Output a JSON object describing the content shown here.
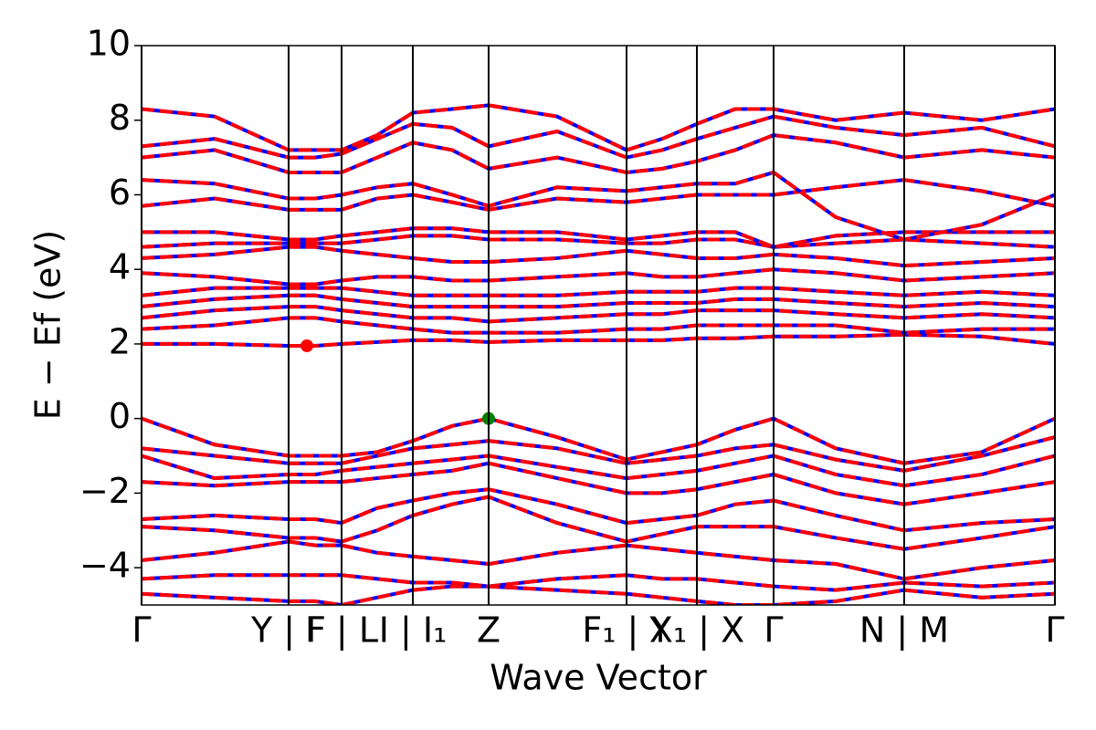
{
  "chart_data": {
    "type": "line",
    "xlabel": "Wave Vector",
    "ylabel": "E − Ef (eV)",
    "xlim": [
      0,
      10
    ],
    "ylim": [
      -5,
      10
    ],
    "xticks": [
      {
        "value": 0,
        "label": "Γ"
      },
      {
        "value": 1.61,
        "label": "Y | F"
      },
      {
        "value": 2.19,
        "label": "F | L"
      },
      {
        "value": 2.97,
        "label": "I | I₁"
      },
      {
        "value": 3.8,
        "label": "Z"
      },
      {
        "value": 5.31,
        "label": "F₁ | Y"
      },
      {
        "value": 6.08,
        "label": "X₁ | X"
      },
      {
        "value": 6.92,
        "label": "Γ"
      },
      {
        "value": 8.35,
        "label": "N | M"
      },
      {
        "value": 10,
        "label": "Γ"
      }
    ],
    "yticks": [
      {
        "value": -4,
        "label": "−4"
      },
      {
        "value": -2,
        "label": "−2"
      },
      0,
      2,
      4,
      6,
      8,
      10
    ],
    "line_color": "#0000ff",
    "dash_color": "#ff0000",
    "x": [
      0,
      0.8,
      1.61,
      1.9,
      2.19,
      2.58,
      2.97,
      3.4,
      3.8,
      4.55,
      5.31,
      5.7,
      6.08,
      6.5,
      6.92,
      7.6,
      8.35,
      9.2,
      10
    ],
    "bands": [
      [
        0,
        -0.7,
        -1,
        -1,
        -1,
        -0.9,
        -0.6,
        -0.2,
        0,
        -0.5,
        -1.1,
        -0.9,
        -0.7,
        -0.3,
        0,
        -0.8,
        -1.2,
        -0.9,
        0
      ],
      [
        -0.8,
        -1.0,
        -1.2,
        -1.2,
        -1.2,
        -1.0,
        -0.8,
        -0.7,
        -0.6,
        -0.8,
        -1.2,
        -1.1,
        -1.0,
        -0.8,
        -0.7,
        -1.1,
        -1.4,
        -1.0,
        -0.5
      ],
      [
        -1.0,
        -1.6,
        -1.5,
        -1.5,
        -1.4,
        -1.3,
        -1.2,
        -1.1,
        -1.0,
        -1.3,
        -1.6,
        -1.5,
        -1.4,
        -1.2,
        -1.0,
        -1.5,
        -1.8,
        -1.5,
        -1.0
      ],
      [
        -1.7,
        -1.8,
        -1.7,
        -1.7,
        -1.7,
        -1.6,
        -1.5,
        -1.4,
        -1.2,
        -1.6,
        -2.0,
        -2.0,
        -1.9,
        -1.7,
        -1.5,
        -2.0,
        -2.3,
        -2.0,
        -1.7
      ],
      [
        -2.7,
        -2.6,
        -2.7,
        -2.7,
        -2.8,
        -2.4,
        -2.2,
        -2.0,
        -1.9,
        -2.3,
        -2.8,
        -2.7,
        -2.6,
        -2.3,
        -2.2,
        -2.6,
        -3.0,
        -2.8,
        -2.7
      ],
      [
        -2.9,
        -3.0,
        -3.2,
        -3.2,
        -3.3,
        -3.0,
        -2.6,
        -2.3,
        -2.1,
        -2.8,
        -3.3,
        -3.1,
        -2.9,
        -2.9,
        -2.9,
        -3.2,
        -3.5,
        -3.2,
        -2.9
      ],
      [
        -3.8,
        -3.6,
        -3.3,
        -3.4,
        -3.4,
        -3.6,
        -3.7,
        -3.8,
        -3.9,
        -3.6,
        -3.4,
        -3.5,
        -3.6,
        -3.7,
        -3.8,
        -3.9,
        -4.3,
        -4.0,
        -3.8
      ],
      [
        -4.3,
        -4.2,
        -4.2,
        -4.2,
        -4.2,
        -4.3,
        -4.4,
        -4.4,
        -4.5,
        -4.3,
        -4.2,
        -4.3,
        -4.3,
        -4.4,
        -4.5,
        -4.6,
        -4.4,
        -4.5,
        -4.4
      ],
      [
        -4.7,
        -4.8,
        -4.9,
        -4.9,
        -5.0,
        -4.8,
        -4.6,
        -4.5,
        -4.5,
        -4.6,
        -4.7,
        -4.8,
        -4.9,
        -5.0,
        -5.0,
        -4.9,
        -4.6,
        -4.8,
        -4.7
      ],
      [
        2.0,
        2.0,
        1.95,
        1.95,
        2.0,
        2.05,
        2.1,
        2.1,
        2.05,
        2.1,
        2.1,
        2.1,
        2.15,
        2.15,
        2.2,
        2.2,
        2.25,
        2.2,
        2.0
      ],
      [
        2.4,
        2.5,
        2.7,
        2.7,
        2.6,
        2.5,
        2.4,
        2.3,
        2.3,
        2.3,
        2.4,
        2.4,
        2.5,
        2.5,
        2.5,
        2.5,
        2.3,
        2.4,
        2.4
      ],
      [
        2.7,
        2.9,
        3.0,
        3.0,
        2.9,
        2.8,
        2.7,
        2.7,
        2.6,
        2.7,
        2.8,
        2.8,
        2.9,
        2.9,
        2.9,
        2.8,
        2.7,
        2.8,
        2.7
      ],
      [
        3.0,
        3.2,
        3.3,
        3.3,
        3.2,
        3.1,
        3.0,
        3.0,
        3.0,
        3.0,
        3.1,
        3.1,
        3.1,
        3.2,
        3.2,
        3.1,
        3.0,
        3.1,
        3.0
      ],
      [
        3.3,
        3.5,
        3.5,
        3.5,
        3.5,
        3.4,
        3.3,
        3.3,
        3.3,
        3.3,
        3.4,
        3.4,
        3.4,
        3.5,
        3.5,
        3.4,
        3.3,
        3.4,
        3.3
      ],
      [
        3.9,
        3.8,
        3.6,
        3.6,
        3.7,
        3.8,
        3.8,
        3.7,
        3.7,
        3.8,
        3.9,
        3.8,
        3.8,
        3.9,
        4.0,
        3.9,
        3.7,
        3.8,
        3.9
      ],
      [
        4.3,
        4.4,
        4.6,
        4.6,
        4.5,
        4.4,
        4.3,
        4.2,
        4.2,
        4.3,
        4.5,
        4.4,
        4.3,
        4.3,
        4.4,
        4.3,
        4.1,
        4.2,
        4.3
      ],
      [
        4.6,
        4.7,
        4.7,
        4.7,
        4.7,
        4.8,
        4.9,
        4.9,
        4.8,
        4.8,
        4.7,
        4.7,
        4.8,
        4.8,
        4.6,
        4.7,
        4.8,
        4.7,
        4.6
      ],
      [
        5.0,
        5.0,
        4.8,
        4.8,
        4.9,
        5.0,
        5.1,
        5.1,
        5.0,
        5.0,
        4.8,
        4.9,
        5.0,
        5.0,
        4.6,
        4.9,
        5.0,
        5.0,
        5.0
      ],
      [
        5.7,
        5.9,
        5.6,
        5.6,
        5.6,
        5.9,
        6.0,
        5.8,
        5.6,
        5.9,
        5.8,
        5.9,
        6.0,
        6.0,
        6.0,
        6.2,
        6.4,
        6.1,
        5.7
      ],
      [
        6.4,
        6.3,
        5.9,
        5.9,
        6.0,
        6.2,
        6.3,
        6.0,
        5.7,
        6.2,
        6.1,
        6.2,
        6.3,
        6.3,
        6.6,
        5.4,
        4.8,
        5.2,
        6.0
      ],
      [
        7.0,
        7.2,
        6.6,
        6.6,
        6.6,
        7.0,
        7.4,
        7.2,
        6.7,
        7.0,
        6.6,
        6.7,
        6.9,
        7.2,
        7.6,
        7.4,
        7.0,
        7.2,
        7.0
      ],
      [
        7.3,
        7.5,
        7.0,
        7.0,
        7.1,
        7.5,
        7.9,
        7.8,
        7.3,
        7.7,
        7.0,
        7.2,
        7.5,
        7.8,
        8.1,
        7.8,
        7.6,
        7.8,
        7.3
      ],
      [
        8.3,
        8.1,
        7.2,
        7.2,
        7.2,
        7.6,
        8.2,
        8.3,
        8.4,
        8.1,
        7.2,
        7.5,
        7.9,
        8.3,
        8.3,
        8.0,
        8.2,
        8.0,
        8.3
      ]
    ],
    "markers": [
      {
        "x": 1.81,
        "y": 1.95,
        "color": "#ff0000"
      },
      {
        "x": 3.8,
        "y": 0,
        "color": "#007f00"
      }
    ]
  }
}
